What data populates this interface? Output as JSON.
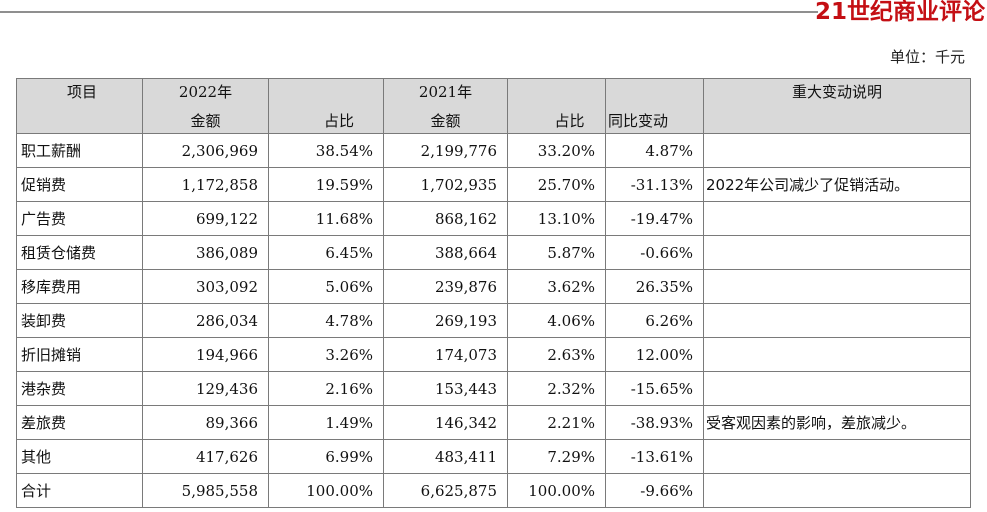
{
  "brand": {
    "logo_text": "21世纪商业评论"
  },
  "unit_label": "单位：千元",
  "table": {
    "headers": {
      "item": "项目",
      "year_2022": "2022年",
      "amount_2022": "金额",
      "share_2022": "占比",
      "year_2021": "2021年",
      "amount_2021": "金额",
      "share_2021": "占比",
      "yoy_change": "同比变动",
      "explanation": "重大变动说明"
    },
    "rows": [
      {
        "item": "职工薪酬",
        "amount_2022": "2,306,969",
        "share_2022": "38.54%",
        "amount_2021": "2,199,776",
        "share_2021": "33.20%",
        "yoy": "4.87%",
        "note": ""
      },
      {
        "item": "促销费",
        "amount_2022": "1,172,858",
        "share_2022": "19.59%",
        "amount_2021": "1,702,935",
        "share_2021": "25.70%",
        "yoy": "-31.13%",
        "note": "2022年公司减少了促销活动。"
      },
      {
        "item": "广告费",
        "amount_2022": "699,122",
        "share_2022": "11.68%",
        "amount_2021": "868,162",
        "share_2021": "13.10%",
        "yoy": "-19.47%",
        "note": ""
      },
      {
        "item": "租赁仓储费",
        "amount_2022": "386,089",
        "share_2022": "6.45%",
        "amount_2021": "388,664",
        "share_2021": "5.87%",
        "yoy": "-0.66%",
        "note": ""
      },
      {
        "item": "移库费用",
        "amount_2022": "303,092",
        "share_2022": "5.06%",
        "amount_2021": "239,876",
        "share_2021": "3.62%",
        "yoy": "26.35%",
        "note": ""
      },
      {
        "item": "装卸费",
        "amount_2022": "286,034",
        "share_2022": "4.78%",
        "amount_2021": "269,193",
        "share_2021": "4.06%",
        "yoy": "6.26%",
        "note": ""
      },
      {
        "item": "折旧摊销",
        "amount_2022": "194,966",
        "share_2022": "3.26%",
        "amount_2021": "174,073",
        "share_2021": "2.63%",
        "yoy": "12.00%",
        "note": ""
      },
      {
        "item": "港杂费",
        "amount_2022": "129,436",
        "share_2022": "2.16%",
        "amount_2021": "153,443",
        "share_2021": "2.32%",
        "yoy": "-15.65%",
        "note": ""
      },
      {
        "item": "差旅费",
        "amount_2022": "89,366",
        "share_2022": "1.49%",
        "amount_2021": "146,342",
        "share_2021": "2.21%",
        "yoy": "-38.93%",
        "note": "受客观因素的影响，差旅减少。"
      },
      {
        "item": "其他",
        "amount_2022": "417,626",
        "share_2022": "6.99%",
        "amount_2021": "483,411",
        "share_2021": "7.29%",
        "yoy": "-13.61%",
        "note": ""
      },
      {
        "item": "合计",
        "amount_2022": "5,985,558",
        "share_2022": "100.00%",
        "amount_2021": "6,625,875",
        "share_2021": "100.00%",
        "yoy": "-9.66%",
        "note": ""
      }
    ]
  }
}
